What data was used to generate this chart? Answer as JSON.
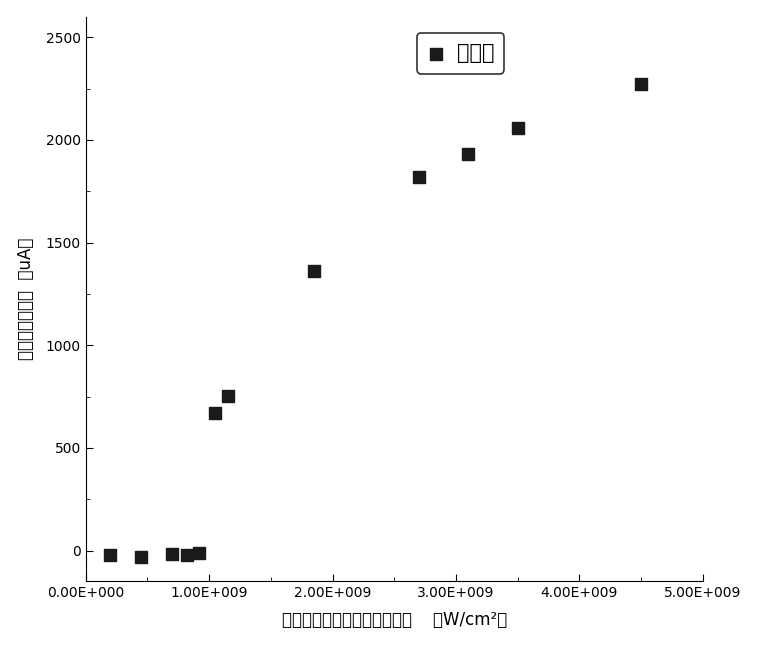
{
  "x_data": [
    200000000.0,
    450000000.0,
    700000000.0,
    820000000.0,
    920000000.0,
    1050000000.0,
    1150000000.0,
    1850000000.0,
    2700000000.0,
    3100000000.0,
    3500000000.0,
    4500000000.0
  ],
  "y_data": [
    -20,
    -30,
    -18,
    -22,
    -12,
    670,
    755,
    1360,
    1820,
    1930,
    2060,
    2270
  ],
  "xlabel": "辐照探测器的强激光功率密度    （W/cm²）",
  "ylabel": "探测器的暗电流  （uA）",
  "legend_label": "暗电流",
  "xlim": [
    0,
    5000000000.0
  ],
  "ylim": [
    -150,
    2600
  ],
  "xticks": [
    0,
    1000000000.0,
    2000000000.0,
    3000000000.0,
    4000000000.0,
    5000000000.0
  ],
  "yticks": [
    0,
    500,
    1000,
    1500,
    2000,
    2500
  ],
  "marker_color": "#1a1a1a",
  "marker_size": 9,
  "axis_fontsize": 12,
  "tick_fontsize": 10,
  "legend_fontsize": 15
}
